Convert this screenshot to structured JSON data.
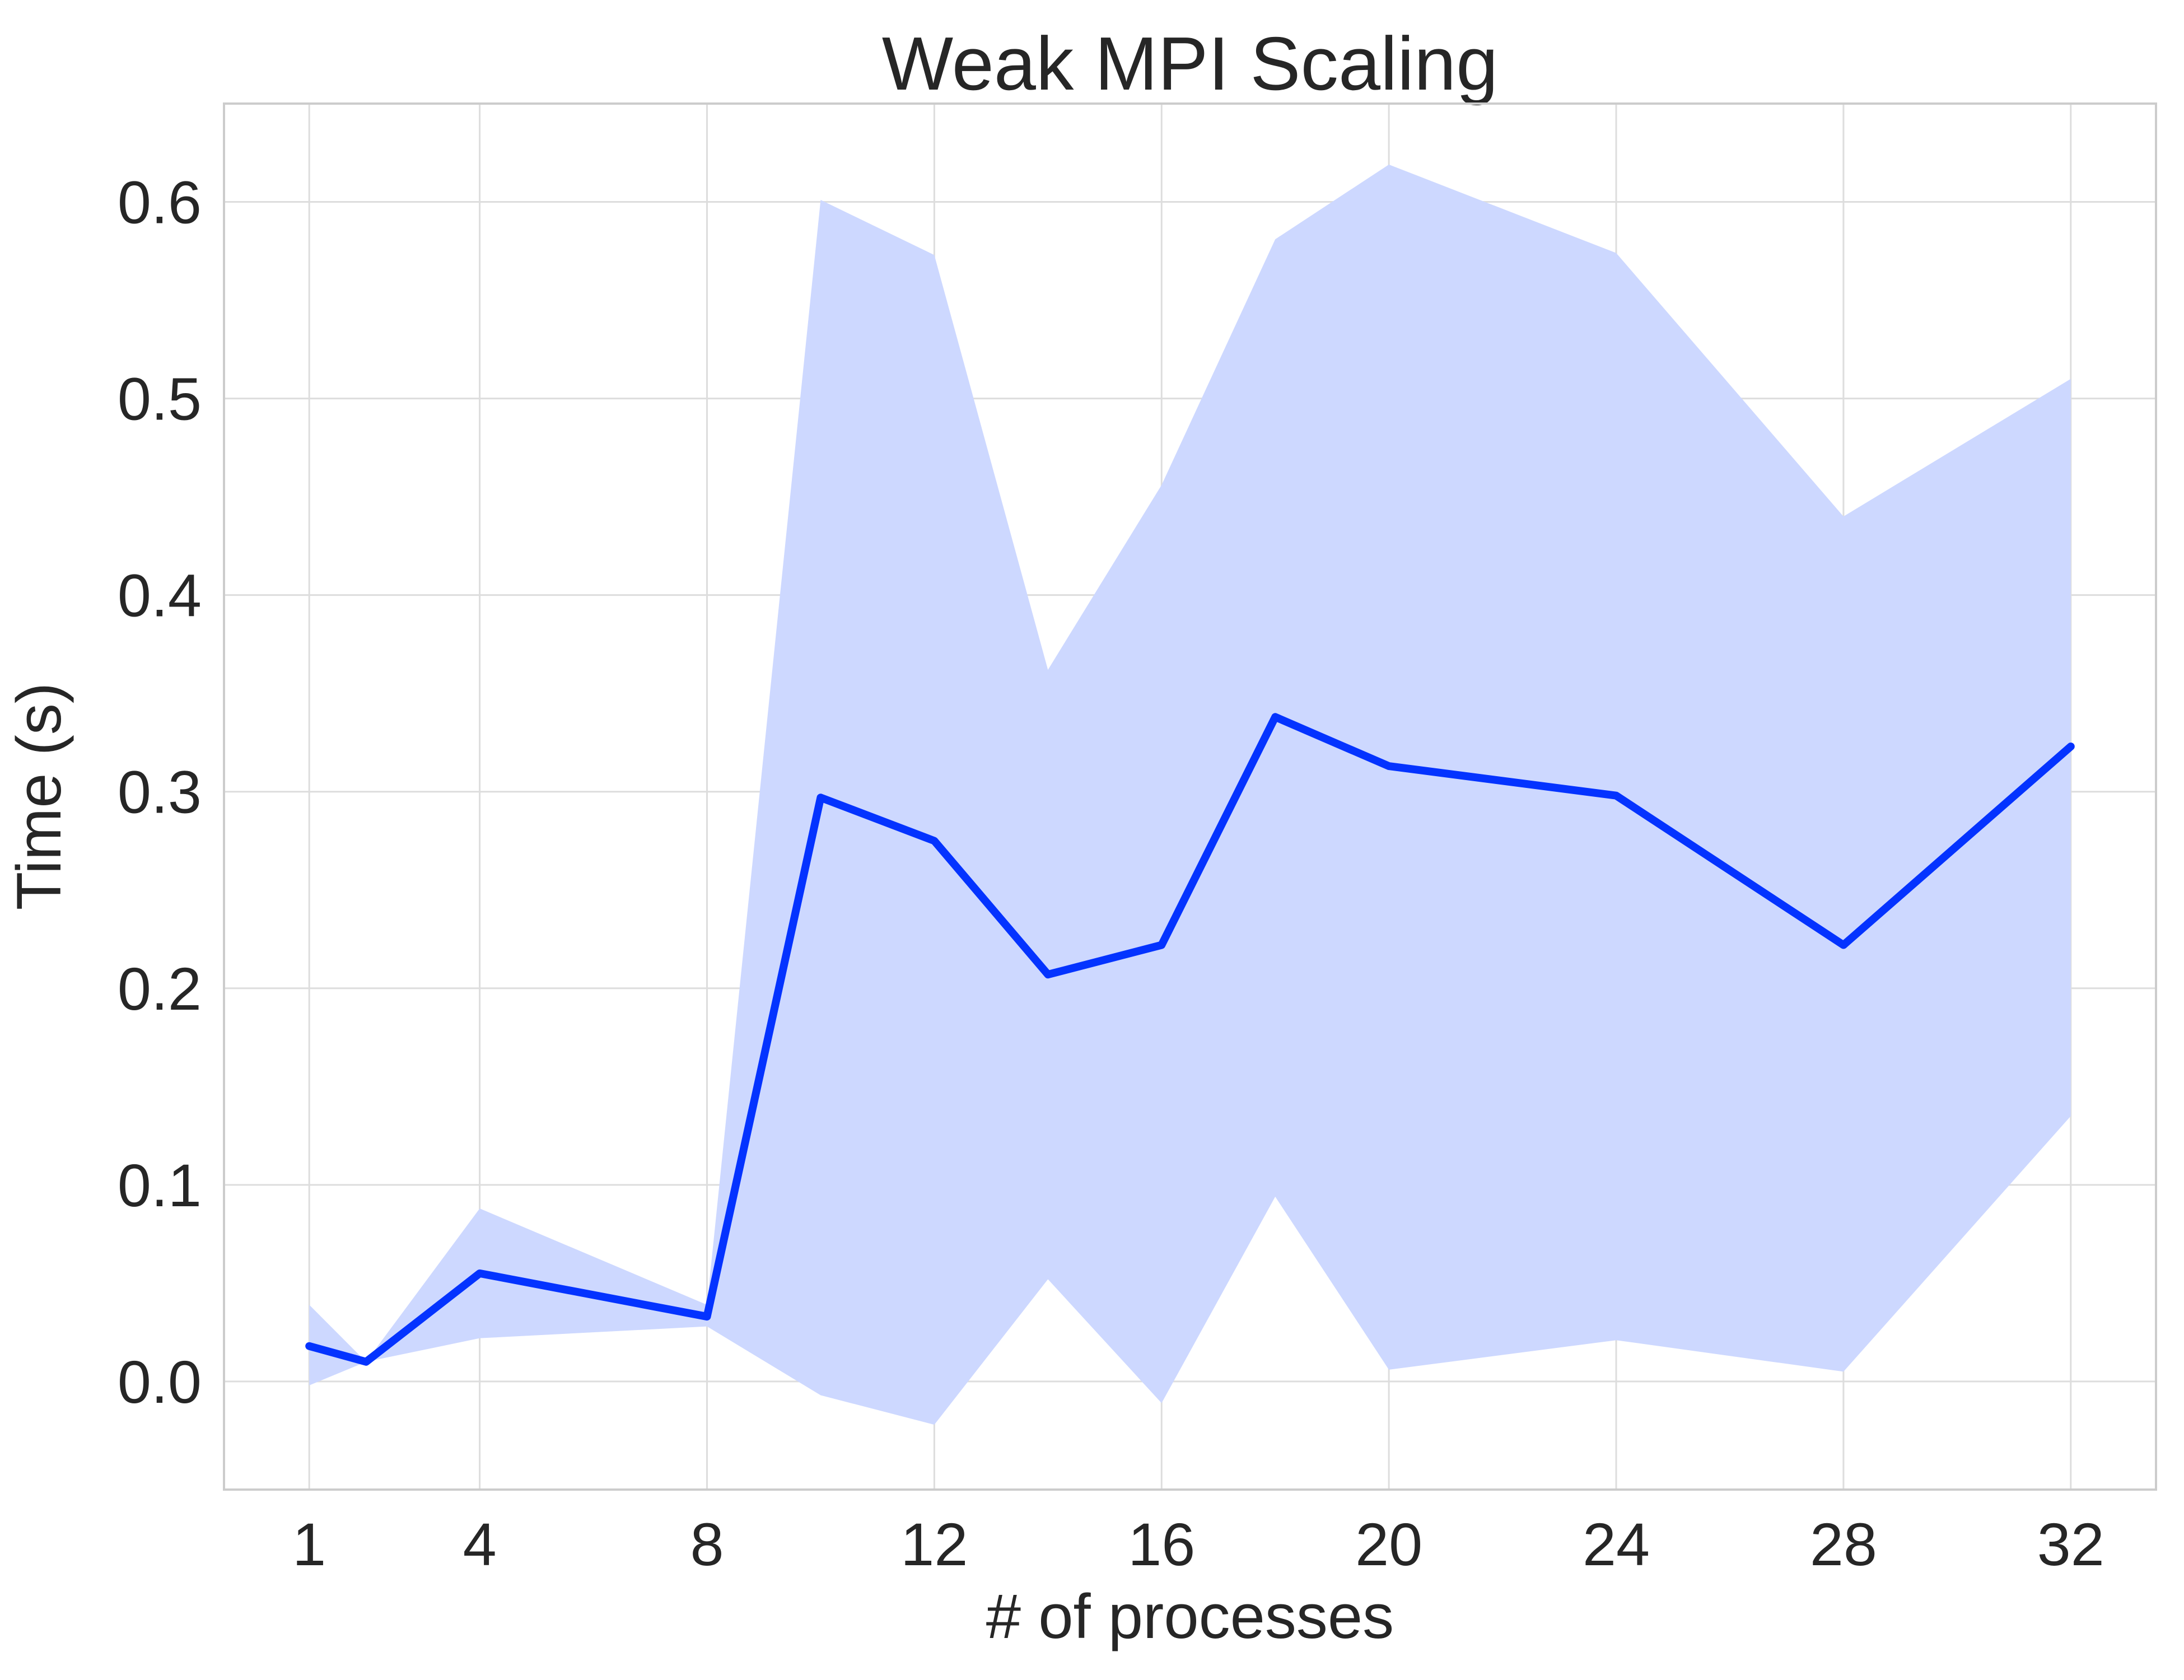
{
  "chart_data": {
    "type": "line",
    "title": "Weak MPI Scaling",
    "xlabel": "# of processes",
    "ylabel": "Time (s)",
    "xlim": [
      -0.5,
      33.5
    ],
    "ylim": [
      -0.055,
      0.65
    ],
    "xticks": [
      1,
      4,
      8,
      12,
      16,
      20,
      24,
      28,
      32
    ],
    "yticks": [
      0.0,
      0.1,
      0.2,
      0.3,
      0.4,
      0.5,
      0.6
    ],
    "ytick_labels": [
      "0.0",
      "0.1",
      "0.2",
      "0.3",
      "0.4",
      "0.5",
      "0.6"
    ],
    "grid": true,
    "series": [
      {
        "x": [
          1,
          2,
          4,
          8,
          10,
          12,
          14,
          16,
          18,
          20,
          24,
          28,
          32
        ],
        "values": [
          0.018,
          0.01,
          0.055,
          0.033,
          0.297,
          0.275,
          0.207,
          0.222,
          0.338,
          0.313,
          0.298,
          0.222,
          0.323
        ],
        "upper": [
          0.039,
          0.01,
          0.088,
          0.039,
          0.601,
          0.573,
          0.362,
          0.456,
          0.581,
          0.619,
          0.574,
          0.44,
          0.51
        ],
        "lower": [
          -0.002,
          0.01,
          0.022,
          0.028,
          -0.007,
          -0.022,
          0.052,
          -0.011,
          0.094,
          0.006,
          0.021,
          0.005,
          0.135
        ],
        "color": "#0433ff",
        "fill_color": "#cdd8ff"
      }
    ]
  }
}
